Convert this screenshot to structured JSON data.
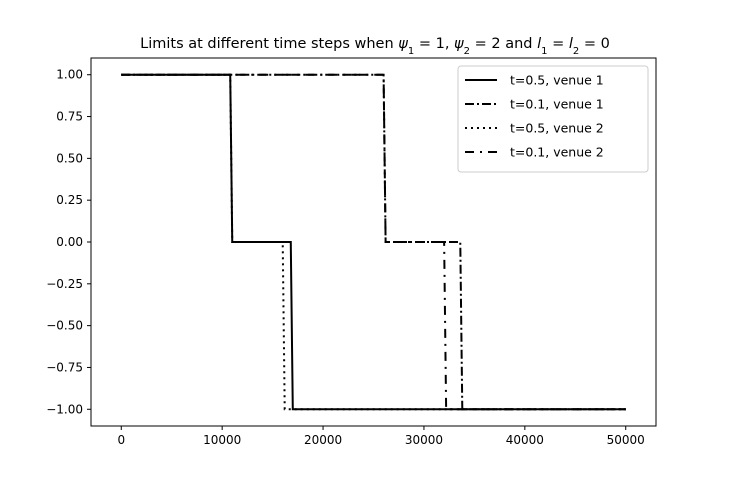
{
  "chart_data": {
    "type": "line",
    "title": "Limits at different time steps when ψ₁ = 1, ψ₂ = 2 and l₁ = l₂ = 0",
    "xlabel": "",
    "ylabel": "",
    "xlim": [
      -3000,
      53000
    ],
    "ylim": [
      -1.1,
      1.1
    ],
    "x_ticks": [
      0,
      10000,
      20000,
      30000,
      40000,
      50000
    ],
    "y_ticks": [
      1.0,
      0.75,
      0.5,
      0.25,
      0.0,
      -0.25,
      -0.5,
      -0.75,
      -1.0
    ],
    "x_tick_labels": [
      "0",
      "10000",
      "20000",
      "30000",
      "40000",
      "50000"
    ],
    "y_tick_labels": [
      "1.00",
      "0.75",
      "0.50",
      "0.25",
      "0.00",
      "−0.25",
      "−0.50",
      "−0.75",
      "−1.00"
    ],
    "grid": false,
    "legend_position": "top-right",
    "series": [
      {
        "name": "t=0.5, venue 1",
        "style": "solid",
        "color": "#000000",
        "x": [
          0,
          10800,
          11000,
          16800,
          17000,
          50000
        ],
        "y": [
          1.0,
          1.0,
          0.0,
          0.0,
          -1.0,
          -1.0
        ]
      },
      {
        "name": "t=0.1, venue 1",
        "style": "dashdot",
        "color": "#000000",
        "x": [
          0,
          26000,
          26200,
          33600,
          33800,
          50000
        ],
        "y": [
          1.0,
          1.0,
          0.0,
          0.0,
          -1.0,
          -1.0
        ]
      },
      {
        "name": "t=0.5, venue 2",
        "style": "dotted",
        "color": "#000000",
        "x": [
          0,
          10800,
          11000,
          16000,
          16200,
          50000
        ],
        "y": [
          1.0,
          1.0,
          0.0,
          0.0,
          -1.0,
          -1.0
        ]
      },
      {
        "name": "t=0.1, venue 2",
        "style": "loosedashdot",
        "color": "#000000",
        "x": [
          0,
          26000,
          26200,
          32000,
          32200,
          50000
        ],
        "y": [
          1.0,
          1.0,
          0.0,
          0.0,
          -1.0,
          -1.0
        ]
      }
    ]
  }
}
